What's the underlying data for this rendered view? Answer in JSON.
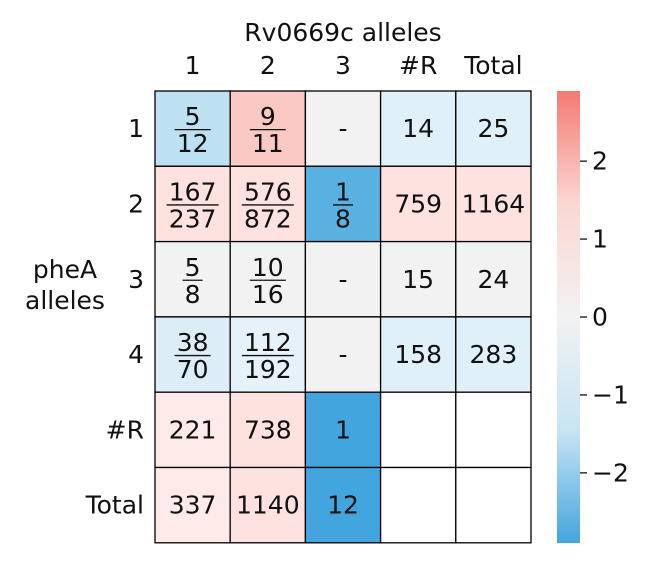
{
  "chart_data": {
    "type": "heatmap",
    "title": "Rv0669c alleles",
    "ylabel_line1": "pheA",
    "ylabel_line2": "alleles",
    "col_labels": [
      "1",
      "2",
      "3",
      "#R",
      "Total"
    ],
    "row_labels": [
      "1",
      "2",
      "3",
      "4",
      "#R",
      "Total"
    ],
    "cells": [
      [
        {
          "num": "5",
          "den": "12",
          "value": -1.0,
          "color": "#bde0f3"
        },
        {
          "num": "9",
          "den": "11",
          "value": 0.9,
          "color": "#fbc9c4"
        },
        {
          "text": "-",
          "color": "#f2f2f2"
        },
        {
          "text": "14",
          "color": "#e0f0f9"
        },
        {
          "text": "25",
          "color": "#e0f0f9"
        }
      ],
      [
        {
          "num": "167",
          "den": "237",
          "value": 0.35,
          "color": "#fde2df"
        },
        {
          "num": "576",
          "den": "872",
          "value": 0.35,
          "color": "#fde2df"
        },
        {
          "num": "1",
          "den": "8",
          "value": -2.6,
          "color": "#59b1e1"
        },
        {
          "text": "759",
          "color": "#fde2df"
        },
        {
          "text": "1164",
          "color": "#fde2df"
        }
      ],
      [
        {
          "num": "5",
          "den": "8",
          "value": 0.0,
          "color": "#f2f2f2"
        },
        {
          "num": "10",
          "den": "16",
          "value": 0.0,
          "color": "#f2f2f2"
        },
        {
          "text": "-",
          "color": "#f2f2f2"
        },
        {
          "text": "15",
          "color": "#f2f2f2"
        },
        {
          "text": "24",
          "color": "#f2f2f2"
        }
      ],
      [
        {
          "num": "38",
          "den": "70",
          "value": -0.4,
          "color": "#dcedf8"
        },
        {
          "num": "112",
          "den": "192",
          "value": -0.2,
          "color": "#e6f2fa"
        },
        {
          "text": "-",
          "color": "#f2f2f2"
        },
        {
          "text": "158",
          "color": "#e0f0f9"
        },
        {
          "text": "283",
          "color": "#e0f0f9"
        }
      ],
      [
        {
          "text": "221",
          "color": "#feeae8"
        },
        {
          "text": "738",
          "color": "#fde2df"
        },
        {
          "text": "1",
          "color": "#43a5dd"
        },
        {
          "text": "",
          "color": "#ffffff"
        },
        {
          "text": "",
          "color": "#ffffff"
        }
      ],
      [
        {
          "text": "337",
          "color": "#feeae8"
        },
        {
          "text": "1140",
          "color": "#fde2df"
        },
        {
          "text": "12",
          "color": "#43a5dd"
        },
        {
          "text": "",
          "color": "#ffffff"
        },
        {
          "text": "",
          "color": "#ffffff"
        }
      ]
    ],
    "colorbar": {
      "range": [
        -2.9,
        2.9
      ],
      "ticks": [
        2,
        1,
        0,
        -1,
        -2
      ],
      "tick_labels": [
        "2",
        "1",
        "0",
        "−1",
        "−2"
      ],
      "colors": [
        "#f47a72",
        "#fbd7d3",
        "#f2f2f2",
        "#c8e4f4",
        "#43a5dd"
      ]
    }
  }
}
